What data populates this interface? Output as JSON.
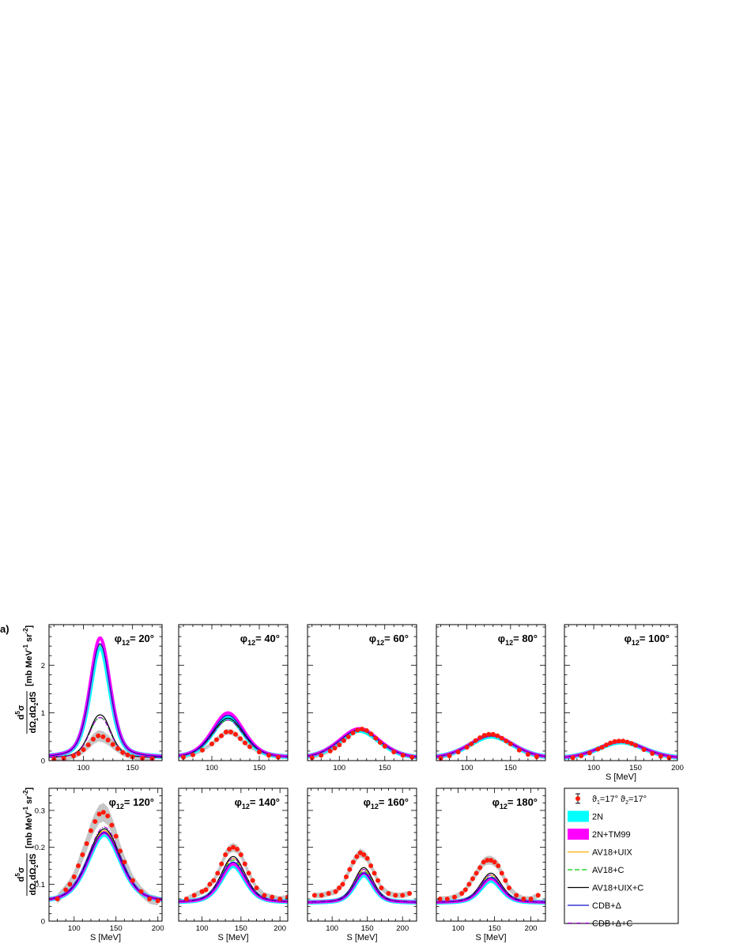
{
  "figure_label": "a)",
  "y_axis_label": {
    "numerator": "d",
    "numerator_sup": "5",
    "numerator_tail": "σ",
    "denominator": "dΩ",
    "d1": "1",
    "dOmega2": "dΩ",
    "d2": "2",
    "dS": "dS",
    "units_pre": "[mb MeV",
    "units_sup1": "-1",
    "units_mid": " sr",
    "units_sup2": "-2",
    "units_post": "]"
  },
  "x_axis_label": "S [MeV]",
  "legend": {
    "data": {
      "pre": "ϑ",
      "sub1": "1",
      "mid": "=17°  ϑ",
      "sub2": "2",
      "post": "=17°"
    },
    "entries": [
      {
        "key": "2n",
        "label": "2N"
      },
      {
        "key": "tm99",
        "label": "2N+TM99"
      },
      {
        "key": "av18uix",
        "label": "AV18+UIX"
      },
      {
        "key": "av18c",
        "label": "AV18+C"
      },
      {
        "key": "av18uixc",
        "label": "AV18+UIX+C"
      },
      {
        "key": "cdbd",
        "label": "CDB+Δ"
      },
      {
        "key": "cdbdc",
        "label": "CDB+Δ+C"
      }
    ]
  },
  "colors": {
    "data_points": "#ff1a0a",
    "band_2n": "#00ffff",
    "band_tm99": "#ff00ff",
    "av18uix": "#ffb000",
    "av18c": "#00cc00",
    "av18uixc": "#000000",
    "cdbd": "#1010cc",
    "cdbdc": "#9b00cc",
    "sys_band": "#c0c0c0"
  },
  "chart_data": [
    {
      "type": "line",
      "title_pre": "φ",
      "title_sub": "12",
      "title_post": "= 20°",
      "xlim": [
        65,
        180
      ],
      "ylim": [
        0,
        2.85
      ],
      "xticks": [
        100,
        150
      ],
      "yticks": [
        0,
        1,
        2
      ],
      "peak": {
        "x": 117,
        "sigma": 10.5,
        "n": 2.0
      },
      "series": {
        "2n": {
          "amp": 2.35,
          "base": 0.05
        },
        "tm99": {
          "amp": 2.52,
          "base": 0.05
        },
        "av18uix": {
          "amp": 2.38,
          "base": 0.05
        },
        "av18c": {
          "amp": 0.9,
          "base": 0.05,
          "dip": 0.05
        },
        "av18uixc": {
          "amp": 0.96,
          "base": 0.05,
          "dip": 0.05
        },
        "cdbd": {
          "amp": 2.4,
          "base": 0.05
        },
        "cdbdc": {
          "amp": 0.9,
          "base": 0.05,
          "dip": 0.05
        }
      },
      "data": {
        "x": [
          70,
          80,
          90,
          95,
          100,
          105,
          110,
          115,
          120,
          125,
          130,
          135,
          140,
          145,
          150,
          160,
          170
        ],
        "y": [
          0.03,
          0.05,
          0.1,
          0.15,
          0.23,
          0.33,
          0.45,
          0.52,
          0.5,
          0.43,
          0.34,
          0.25,
          0.17,
          0.12,
          0.08,
          0.05,
          0.04
        ]
      },
      "sys": 0.12
    },
    {
      "type": "line",
      "title_pre": "φ",
      "title_sub": "12",
      "title_post": "= 40°",
      "xlim": [
        65,
        180
      ],
      "ylim": [
        0,
        2.85
      ],
      "xticks": [
        100,
        150
      ],
      "yticks": [
        0,
        1,
        2
      ],
      "peak": {
        "x": 117,
        "sigma": 17,
        "n": 2.0
      },
      "series": {
        "2n": {
          "amp": 0.86,
          "base": 0.05
        },
        "tm99": {
          "amp": 0.95,
          "base": 0.05
        },
        "av18uix": {
          "amp": 0.9,
          "base": 0.05
        },
        "av18c": {
          "amp": 0.8,
          "base": 0.05
        },
        "av18uixc": {
          "amp": 0.84,
          "base": 0.05
        },
        "cdbd": {
          "amp": 0.9,
          "base": 0.05
        },
        "cdbdc": {
          "amp": 0.8,
          "base": 0.05
        }
      },
      "data": {
        "x": [
          70,
          80,
          90,
          100,
          105,
          110,
          115,
          120,
          125,
          130,
          135,
          140,
          150,
          160,
          170
        ],
        "y": [
          0.07,
          0.12,
          0.22,
          0.35,
          0.44,
          0.52,
          0.6,
          0.6,
          0.55,
          0.46,
          0.37,
          0.29,
          0.18,
          0.11,
          0.07
        ]
      },
      "sys": 0.06
    },
    {
      "type": "line",
      "title_pre": "φ",
      "title_sub": "12",
      "title_post": "= 60°",
      "xlim": [
        65,
        185
      ],
      "ylim": [
        0,
        2.85
      ],
      "xticks": [
        100,
        150
      ],
      "yticks": [
        0,
        1,
        2
      ],
      "peak": {
        "x": 122,
        "sigma": 23,
        "n": 2.0
      },
      "series": {
        "2n": {
          "amp": 0.6,
          "base": 0.03
        },
        "tm99": {
          "amp": 0.64,
          "base": 0.03
        },
        "av18uix": {
          "amp": 0.62,
          "base": 0.03
        },
        "av18c": {
          "amp": 0.6,
          "base": 0.03
        },
        "av18uixc": {
          "amp": 0.62,
          "base": 0.03
        },
        "cdbd": {
          "amp": 0.62,
          "base": 0.03
        },
        "cdbdc": {
          "amp": 0.6,
          "base": 0.03
        }
      },
      "data": {
        "x": [
          70,
          80,
          90,
          95,
          100,
          105,
          110,
          115,
          120,
          125,
          130,
          135,
          140,
          145,
          150,
          160,
          170,
          180
        ],
        "y": [
          0.06,
          0.11,
          0.2,
          0.26,
          0.33,
          0.42,
          0.5,
          0.58,
          0.64,
          0.66,
          0.63,
          0.56,
          0.47,
          0.38,
          0.3,
          0.18,
          0.11,
          0.07
        ]
      },
      "sys": 0.05
    },
    {
      "type": "line",
      "title_pre": "φ",
      "title_sub": "12",
      "title_post": "= 80°",
      "xlim": [
        65,
        190
      ],
      "ylim": [
        0,
        2.85
      ],
      "xticks": [
        100,
        150
      ],
      "yticks": [
        0,
        1,
        2
      ],
      "peak": {
        "x": 128,
        "sigma": 26,
        "n": 2.0
      },
      "series": {
        "2n": {
          "amp": 0.48,
          "base": 0.03
        },
        "tm99": {
          "amp": 0.5,
          "base": 0.03
        },
        "av18uix": {
          "amp": 0.49,
          "base": 0.03
        },
        "av18c": {
          "amp": 0.48,
          "base": 0.03
        },
        "av18uixc": {
          "amp": 0.49,
          "base": 0.03
        },
        "cdbd": {
          "amp": 0.49,
          "base": 0.03
        },
        "cdbdc": {
          "amp": 0.48,
          "base": 0.03
        }
      },
      "data": {
        "x": [
          70,
          80,
          90,
          100,
          105,
          110,
          115,
          120,
          125,
          130,
          135,
          140,
          145,
          150,
          160,
          170,
          180
        ],
        "y": [
          0.05,
          0.1,
          0.18,
          0.28,
          0.35,
          0.42,
          0.48,
          0.53,
          0.55,
          0.55,
          0.52,
          0.47,
          0.41,
          0.35,
          0.22,
          0.13,
          0.08
        ]
      },
      "sys": 0.04
    },
    {
      "type": "line",
      "title_pre": "φ",
      "title_sub": "12",
      "title_post": "= 100°",
      "xlim": [
        65,
        200
      ],
      "ylim": [
        0,
        2.85
      ],
      "xticks": [
        100,
        150,
        200
      ],
      "yticks": [
        0,
        1,
        2
      ],
      "peak": {
        "x": 133,
        "sigma": 28,
        "n": 2.0
      },
      "series": {
        "2n": {
          "amp": 0.36,
          "base": 0.03
        },
        "tm99": {
          "amp": 0.37,
          "base": 0.03
        },
        "av18uix": {
          "amp": 0.37,
          "base": 0.03
        },
        "av18c": {
          "amp": 0.36,
          "base": 0.03
        },
        "av18uixc": {
          "amp": 0.37,
          "base": 0.03
        },
        "cdbd": {
          "amp": 0.37,
          "base": 0.03
        },
        "cdbdc": {
          "amp": 0.36,
          "base": 0.03
        }
      },
      "data": {
        "x": [
          75,
          85,
          95,
          105,
          110,
          115,
          120,
          125,
          130,
          135,
          140,
          145,
          150,
          160,
          170,
          180,
          190
        ],
        "y": [
          0.06,
          0.1,
          0.16,
          0.24,
          0.28,
          0.33,
          0.37,
          0.4,
          0.41,
          0.41,
          0.39,
          0.36,
          0.32,
          0.23,
          0.15,
          0.09,
          0.06
        ]
      },
      "sys": 0.03
    },
    {
      "type": "line",
      "title_pre": "φ",
      "title_sub": "12",
      "title_post": "= 120°",
      "xlim": [
        70,
        205
      ],
      "ylim": [
        0,
        0.36
      ],
      "xticks": [
        100,
        150,
        200
      ],
      "yticks": [
        0,
        0.1,
        0.2,
        0.3
      ],
      "peak": {
        "x": 136,
        "sigma": 20,
        "n": 2.0
      },
      "series": {
        "2n": {
          "amp": 0.185,
          "base": 0.05
        },
        "tm99": {
          "amp": 0.19,
          "base": 0.05
        },
        "av18uix": {
          "amp": 0.195,
          "base": 0.05
        },
        "av18c": {
          "amp": 0.2,
          "base": 0.05
        },
        "av18uixc": {
          "amp": 0.2,
          "base": 0.05
        },
        "cdbd": {
          "amp": 0.19,
          "base": 0.05
        },
        "cdbdc": {
          "amp": 0.205,
          "base": 0.05
        }
      },
      "data": {
        "x": [
          80,
          90,
          95,
          100,
          105,
          110,
          115,
          120,
          125,
          130,
          135,
          140,
          145,
          150,
          155,
          160,
          170,
          180,
          190,
          200
        ],
        "y": [
          0.06,
          0.085,
          0.1,
          0.12,
          0.15,
          0.18,
          0.21,
          0.245,
          0.27,
          0.29,
          0.295,
          0.285,
          0.26,
          0.23,
          0.19,
          0.16,
          0.11,
          0.08,
          0.06,
          0.055
        ]
      },
      "sys": 0.025
    },
    {
      "type": "line",
      "title_pre": "φ",
      "title_sub": "12",
      "title_post": "= 140°",
      "xlim": [
        70,
        210
      ],
      "ylim": [
        0,
        0.36
      ],
      "xticks": [
        100,
        150,
        200
      ],
      "yticks": [
        0,
        0.1,
        0.2,
        0.3
      ],
      "peak": {
        "x": 140,
        "sigma": 16,
        "n": 2.0
      },
      "series": {
        "2n": {
          "amp": 0.1,
          "base": 0.05
        },
        "tm99": {
          "amp": 0.105,
          "base": 0.05
        },
        "av18uix": {
          "amp": 0.12,
          "base": 0.05
        },
        "av18c": {
          "amp": 0.115,
          "base": 0.05
        },
        "av18uixc": {
          "amp": 0.125,
          "base": 0.05
        },
        "cdbd": {
          "amp": 0.11,
          "base": 0.05
        },
        "cdbdc": {
          "amp": 0.12,
          "base": 0.05
        }
      },
      "data": {
        "x": [
          80,
          90,
          100,
          105,
          110,
          115,
          120,
          125,
          130,
          135,
          140,
          145,
          150,
          155,
          160,
          165,
          170,
          180,
          190,
          200,
          210
        ],
        "y": [
          0.06,
          0.07,
          0.08,
          0.085,
          0.1,
          0.11,
          0.13,
          0.155,
          0.18,
          0.195,
          0.2,
          0.195,
          0.18,
          0.155,
          0.13,
          0.11,
          0.09,
          0.07,
          0.065,
          0.06,
          0.065
        ]
      },
      "sys": 0.012
    },
    {
      "type": "line",
      "title_pre": "φ",
      "title_sub": "12",
      "title_post": "= 160°",
      "xlim": [
        65,
        220
      ],
      "ylim": [
        0,
        0.36
      ],
      "xticks": [
        100,
        150,
        200
      ],
      "yticks": [
        0,
        0.1,
        0.2,
        0.3
      ],
      "peak": {
        "x": 145,
        "sigma": 14,
        "n": 2.0
      },
      "series": {
        "2n": {
          "amp": 0.075,
          "base": 0.05
        },
        "tm99": {
          "amp": 0.08,
          "base": 0.05
        },
        "av18uix": {
          "amp": 0.09,
          "base": 0.05
        },
        "av18c": {
          "amp": 0.085,
          "base": 0.05
        },
        "av18uixc": {
          "amp": 0.095,
          "base": 0.05
        },
        "cdbd": {
          "amp": 0.08,
          "base": 0.05
        },
        "cdbdc": {
          "amp": 0.09,
          "base": 0.05
        }
      },
      "data": {
        "x": [
          75,
          85,
          95,
          105,
          110,
          115,
          120,
          125,
          130,
          135,
          140,
          145,
          150,
          155,
          160,
          165,
          170,
          180,
          190,
          200,
          210
        ],
        "y": [
          0.07,
          0.07,
          0.075,
          0.08,
          0.09,
          0.1,
          0.12,
          0.14,
          0.16,
          0.175,
          0.185,
          0.18,
          0.17,
          0.15,
          0.13,
          0.11,
          0.09,
          0.075,
          0.07,
          0.07,
          0.075
        ]
      },
      "sys": 0.012
    },
    {
      "type": "line",
      "title_pre": "φ",
      "title_sub": "12",
      "title_post": "= 180°",
      "xlim": [
        70,
        220
      ],
      "ylim": [
        0,
        0.36
      ],
      "xticks": [
        100,
        150,
        200
      ],
      "yticks": [
        0,
        0.1,
        0.2,
        0.3
      ],
      "peak": {
        "x": 145,
        "sigma": 15,
        "n": 2.0
      },
      "series": {
        "2n": {
          "amp": 0.06,
          "base": 0.05
        },
        "tm99": {
          "amp": 0.065,
          "base": 0.05
        },
        "av18uix": {
          "amp": 0.075,
          "base": 0.05
        },
        "av18c": {
          "amp": 0.07,
          "base": 0.05
        },
        "av18uixc": {
          "amp": 0.08,
          "base": 0.05
        },
        "cdbd": {
          "amp": 0.068,
          "base": 0.05
        },
        "cdbdc": {
          "amp": 0.075,
          "base": 0.05
        }
      },
      "data": {
        "x": [
          75,
          85,
          95,
          105,
          110,
          115,
          120,
          125,
          130,
          135,
          140,
          145,
          150,
          155,
          160,
          165,
          170,
          180,
          190,
          200,
          210
        ],
        "y": [
          0.06,
          0.06,
          0.065,
          0.075,
          0.085,
          0.1,
          0.115,
          0.13,
          0.145,
          0.16,
          0.165,
          0.165,
          0.16,
          0.15,
          0.13,
          0.11,
          0.09,
          0.07,
          0.06,
          0.06,
          0.07
        ]
      },
      "sys": 0.012
    }
  ]
}
